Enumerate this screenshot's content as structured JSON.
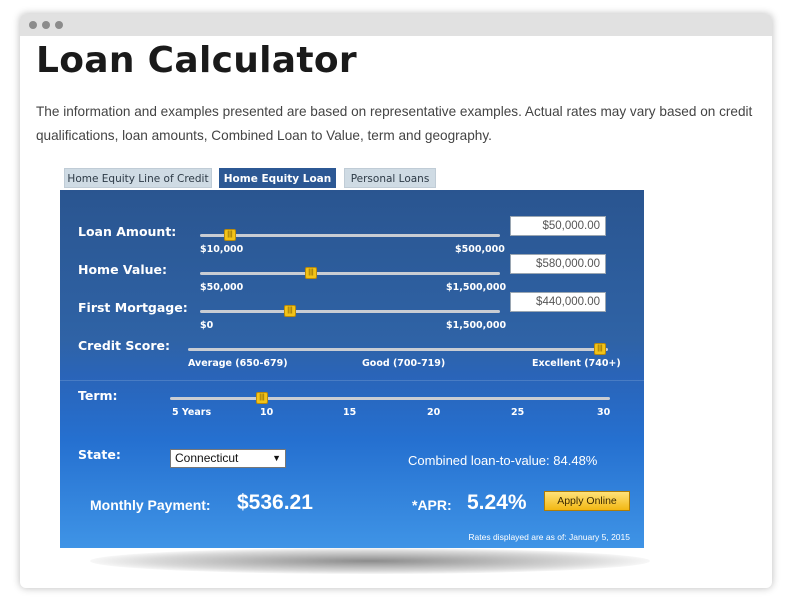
{
  "page": {
    "title": "Loan Calculator",
    "intro": "The information and examples presented are based on representative examples. Actual rates may vary based on credit qualifications, loan amounts, Combined Loan to Value, term and geography."
  },
  "tabs": [
    {
      "label": "Home Equity Line of Credit",
      "active": false
    },
    {
      "label": "Home Equity Loan",
      "active": true
    },
    {
      "label": "Personal Loans",
      "active": false
    }
  ],
  "calculator": {
    "loan_amount": {
      "label": "Loan Amount:",
      "min_label": "$10,000",
      "max_label": "$500,000",
      "value": "$50,000.00",
      "slider_fraction": 0.08
    },
    "home_value": {
      "label": "Home Value:",
      "min_label": "$50,000",
      "max_label": "$1,500,000",
      "value": "$580,000.00",
      "slider_fraction": 0.37
    },
    "first_mortgage": {
      "label": "First Mortgage:",
      "min_label": "$0",
      "max_label": "$1,500,000",
      "value": "$440,000.00",
      "slider_fraction": 0.29
    },
    "credit_score": {
      "label": "Credit Score:",
      "ticks": [
        "Average (650-679)",
        "Good (700-719)",
        "Excellent (740+)"
      ],
      "selected": "Excellent (740+)"
    },
    "term": {
      "label": "Term:",
      "ticks": [
        "5 Years",
        "10",
        "15",
        "20",
        "25",
        "30"
      ],
      "value_years": 10
    },
    "state": {
      "label": "State:",
      "selected": "Connecticut"
    },
    "cltv": {
      "label": "Combined loan-to-value:",
      "value": "84.48%"
    },
    "monthly_payment": {
      "label": "Monthly Payment:",
      "value": "$536.21"
    },
    "apr": {
      "label": "*APR:",
      "value": "5.24%"
    },
    "apply_label": "Apply Online",
    "rates_note": "Rates displayed are as of: January 5, 2015"
  },
  "icons": {
    "slider_handle": "grip-handle-icon",
    "dropdown": "chevron-down-icon"
  },
  "colors": {
    "panel_blue": "#2c5894",
    "handle_yellow": "#f2c318",
    "active_tab": "#2c5894"
  }
}
